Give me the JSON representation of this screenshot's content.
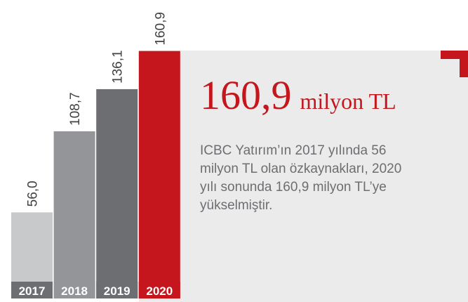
{
  "chart_data": {
    "type": "bar",
    "categories": [
      "2017",
      "2018",
      "2019",
      "2020"
    ],
    "values": [
      56.0,
      108.7,
      136.1,
      160.9
    ],
    "value_labels": [
      "56,0",
      "108,7",
      "136,1",
      "160,9"
    ],
    "colors": [
      "#c8c9ca",
      "#939598",
      "#6d6e71",
      "#c4161c"
    ],
    "ylim": [
      0,
      170
    ],
    "annotation_value": "160,9",
    "annotation_unit": "milyon TL",
    "annotation_text": [
      "ICBC Yatırım’ın 2017 yılında 56",
      "milyon TL olan özkaynakları, 2020",
      "yılı sonunda 160,9 milyon TL’ye",
      "yükselmiştir."
    ]
  }
}
